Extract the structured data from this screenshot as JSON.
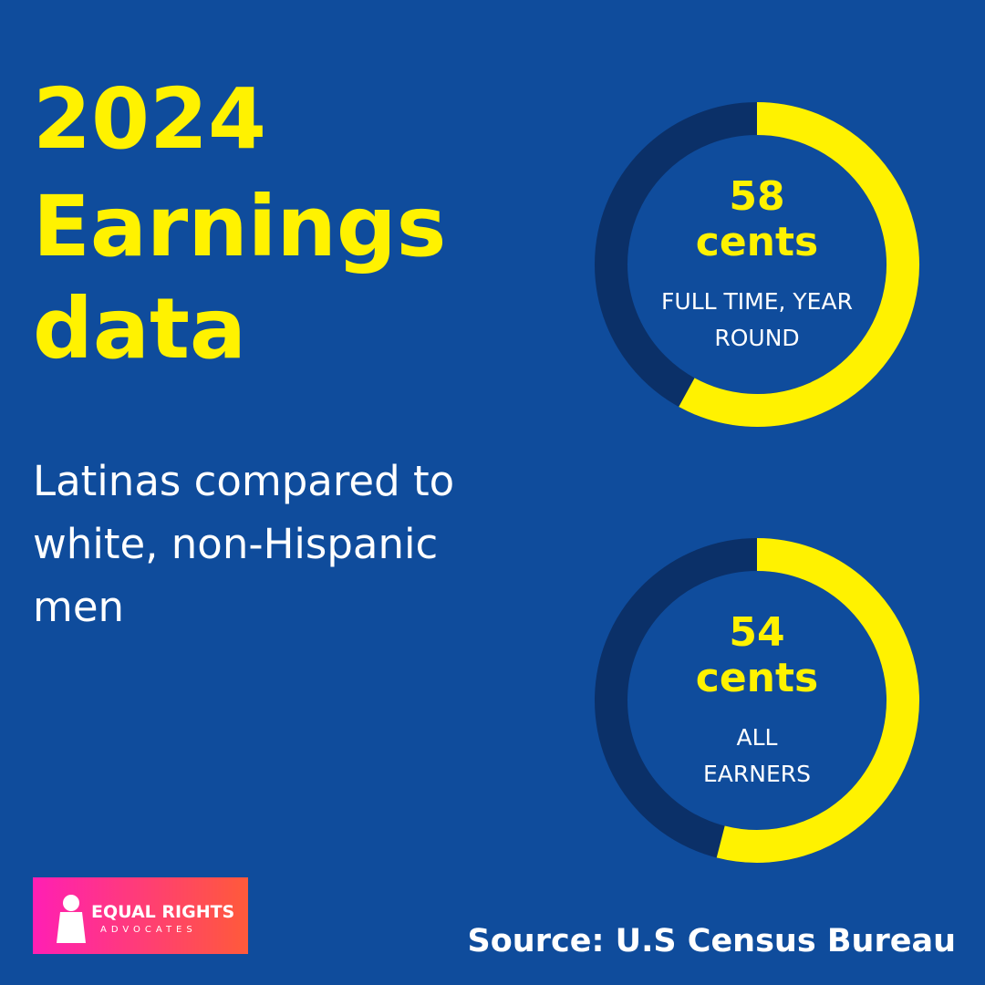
{
  "title_lines": [
    "2024",
    "Earnings",
    "data"
  ],
  "subtitle_lines": [
    "Latinas compared to",
    "white, non-Hispanic",
    "men"
  ],
  "chart_data": [
    {
      "type": "donut",
      "values": [
        58
      ],
      "unit": "cents",
      "label_lines": [
        "FULL TIME, YEAR",
        "ROUND"
      ],
      "ylim": [
        0,
        100
      ],
      "color": "#fff200",
      "track_color": "#0b3068"
    },
    {
      "type": "donut",
      "values": [
        54
      ],
      "unit": "cents",
      "label_lines": [
        "ALL",
        "EARNERS"
      ],
      "ylim": [
        0,
        100
      ],
      "color": "#fff200",
      "track_color": "#0b3068"
    }
  ],
  "source": "Source: U.S Census Bureau",
  "logo": {
    "name": "EQUAL RIGHTS",
    "tagline": "ADVOCATES"
  }
}
